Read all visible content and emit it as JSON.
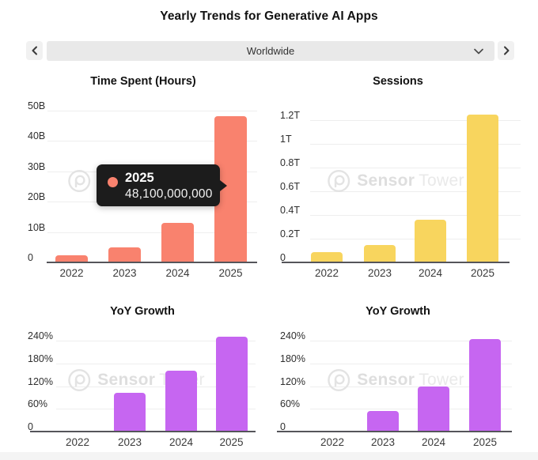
{
  "header": {
    "title": "Yearly Trends for Generative AI Apps"
  },
  "controls": {
    "region_selector": {
      "value": "Worldwide"
    }
  },
  "watermark": {
    "text": "Sensor Tower",
    "part1": "Sensor",
    "part2": "Tower"
  },
  "tooltip": {
    "year": "2025",
    "value": "48,100,000,000"
  },
  "colors": {
    "time_spent_bar": "#F9826E",
    "sessions_bar": "#F8D55E",
    "yoy_bar": "#C666F1",
    "tooltip_bg": "#1C1C1C",
    "tooltip_dot": "#F9826E",
    "axis": "#55555A",
    "gridline": "#EEEEEE",
    "watermark": "#E3E3E3"
  },
  "chart_data": [
    {
      "id": "time-spent",
      "type": "bar",
      "title": "Time Spent (Hours)",
      "categories": [
        "2022",
        "2023",
        "2024",
        "2025"
      ],
      "values": [
        2.4,
        5,
        13,
        48.1
      ],
      "value_unit": "billions of hours",
      "ytick_values": [
        0,
        10,
        20,
        30,
        40,
        50
      ],
      "ytick_labels": [
        "0",
        "10B",
        "20B",
        "30B",
        "40B",
        "50B"
      ],
      "ylim": [
        0,
        53.6
      ],
      "grid": true,
      "legend": "none",
      "bar_color": "#F9826E",
      "highlighted_point": {
        "category": "2025",
        "value_label": "48,100,000,000"
      }
    },
    {
      "id": "sessions",
      "type": "bar",
      "title": "Sessions",
      "categories": [
        "2022",
        "2023",
        "2024",
        "2025"
      ],
      "values": [
        0.09,
        0.15,
        0.36,
        1.25
      ],
      "value_unit": "trillions of sessions",
      "ytick_values": [
        0,
        0.2,
        0.4,
        0.6,
        0.8,
        1,
        1.2
      ],
      "ytick_labels": [
        "0",
        "0.2T",
        "0.4T",
        "0.6T",
        "0.8T",
        "1T",
        "1.2T"
      ],
      "ylim": [
        0,
        1.37
      ],
      "grid": true,
      "legend": "none",
      "bar_color": "#F8D55E"
    },
    {
      "id": "yoy-growth-time-spent",
      "type": "bar",
      "title": "YoY Growth",
      "categories": [
        "2022",
        "2023",
        "2024",
        "2025"
      ],
      "values": [
        2,
        103,
        160,
        250
      ],
      "value_unit": "percent",
      "ytick_values": [
        0,
        60,
        120,
        180,
        240
      ],
      "ytick_labels": [
        "0",
        "60%",
        "120%",
        "180%",
        "240%"
      ],
      "ylim": [
        0,
        280
      ],
      "grid": true,
      "legend": "none",
      "bar_color": "#C666F1"
    },
    {
      "id": "yoy-growth-sessions",
      "type": "bar",
      "title": "YoY Growth",
      "categories": [
        "2022",
        "2023",
        "2024",
        "2025"
      ],
      "values": [
        2,
        55,
        120,
        245
      ],
      "value_unit": "percent",
      "ytick_values": [
        0,
        60,
        120,
        180,
        240
      ],
      "ytick_labels": [
        "0",
        "60%",
        "120%",
        "180%",
        "240%"
      ],
      "ylim": [
        0,
        280
      ],
      "grid": true,
      "legend": "none",
      "bar_color": "#C666F1"
    }
  ]
}
